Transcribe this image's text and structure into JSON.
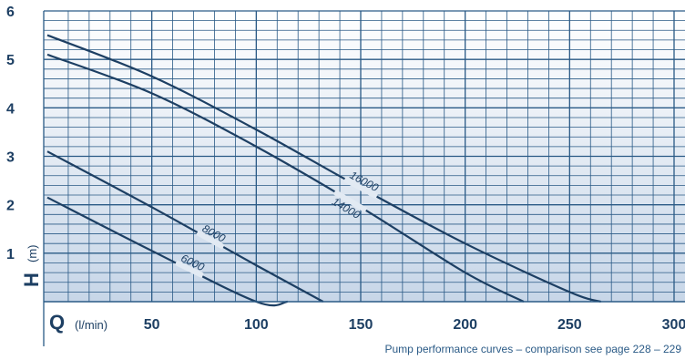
{
  "chart_data": {
    "type": "line",
    "title": "",
    "xlabel": "Q",
    "xunit": "(l/min)",
    "ylabel": "H",
    "yunit": "(m)",
    "xlim": [
      0,
      300
    ],
    "ylim": [
      0,
      6
    ],
    "x_ticks": [
      "50",
      "100",
      "150",
      "200",
      "250",
      "300"
    ],
    "y_ticks": [
      "1",
      "2",
      "3",
      "4",
      "5",
      "6"
    ],
    "grid": true,
    "series": [
      {
        "name": "16000",
        "x": [
          0,
          50,
          100,
          150,
          200,
          250,
          265
        ],
        "y": [
          5.5,
          4.65,
          3.55,
          2.35,
          1.2,
          0.2,
          0
        ]
      },
      {
        "name": "14000",
        "x": [
          0,
          50,
          100,
          150,
          200,
          228
        ],
        "y": [
          5.1,
          4.3,
          3.2,
          1.95,
          0.6,
          0
        ]
      },
      {
        "name": "8000",
        "x": [
          0,
          50,
          100,
          132
        ],
        "y": [
          3.1,
          1.95,
          0.75,
          0
        ]
      },
      {
        "name": "6000",
        "x": [
          0,
          50,
          100,
          115
        ],
        "y": [
          2.15,
          1.05,
          0.0,
          0
        ]
      }
    ],
    "colors": {
      "line": "#1d3f63",
      "grid": "#2a5a86",
      "bg_top": "#ffffff",
      "bg_bottom": "#c7d6e8"
    },
    "caption": "Pump performance curves – comparison see page 228 – 229"
  }
}
